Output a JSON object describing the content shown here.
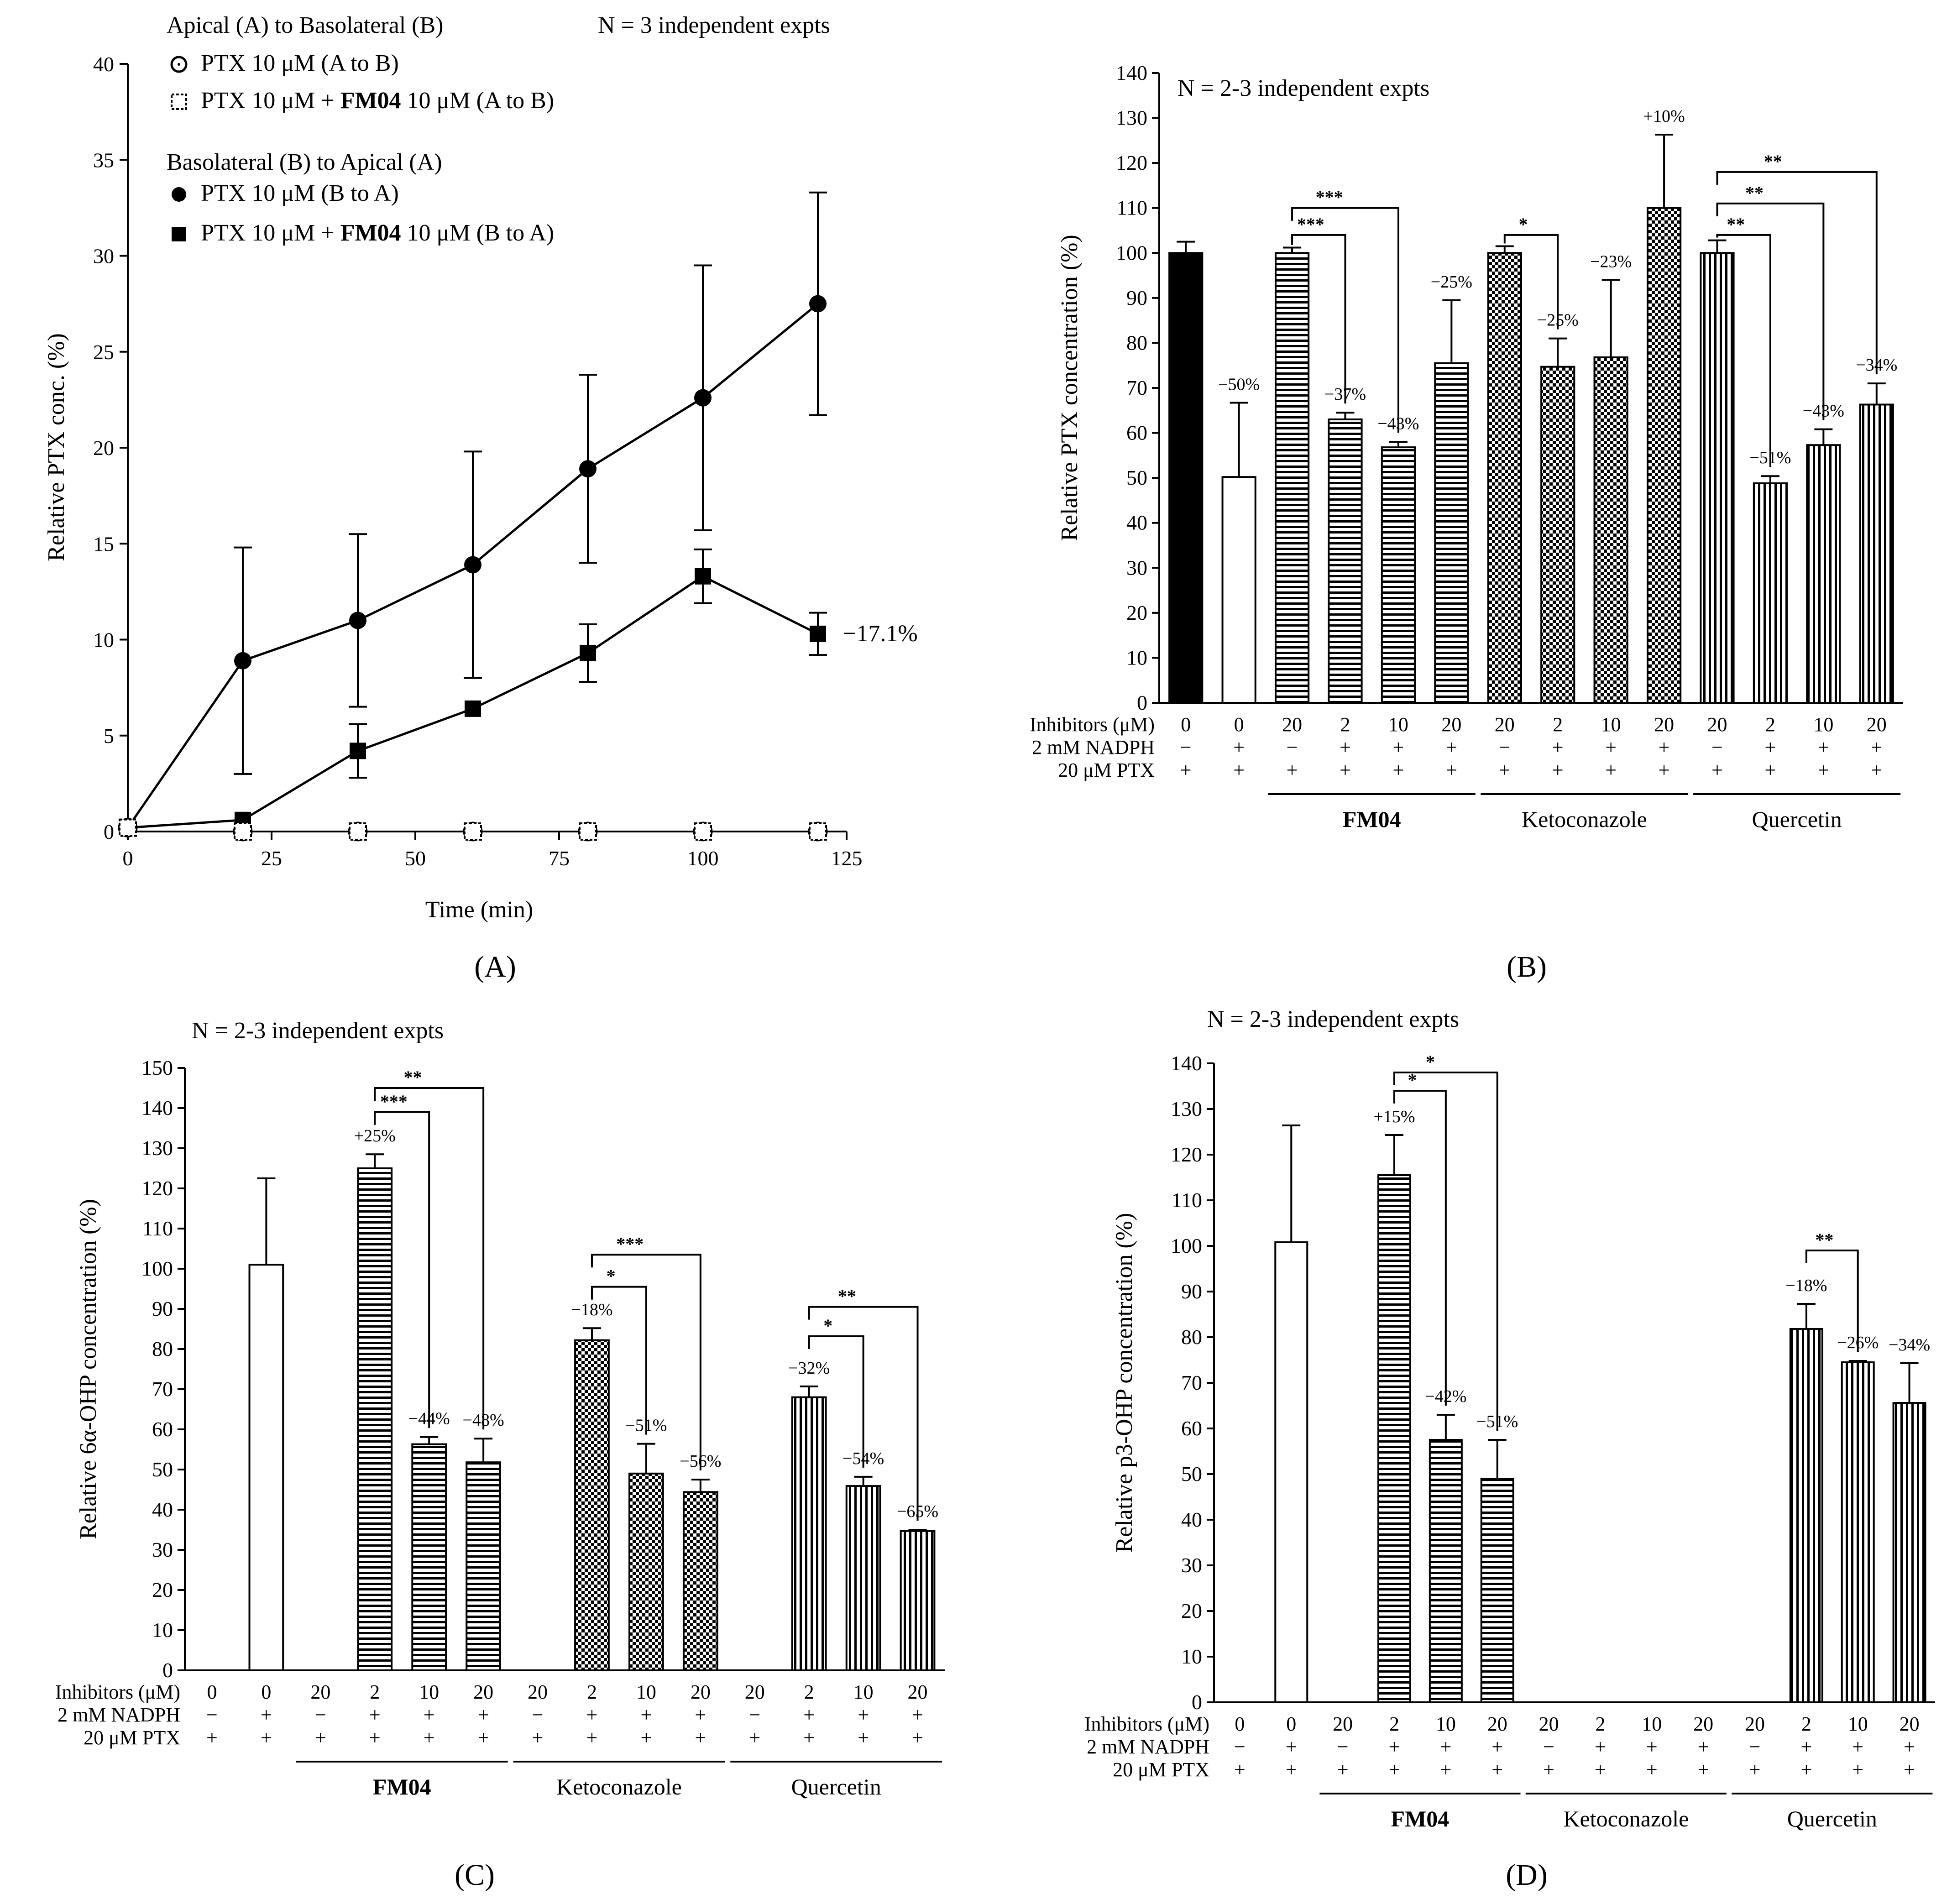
{
  "chart_data": [
    {
      "panel": "A",
      "type": "line",
      "panel_label": "(A)",
      "xlabel": "Time (min)",
      "ylabel": "Relative PTX conc.  (%)",
      "xlim": [
        0,
        125
      ],
      "ylim": [
        0,
        40
      ],
      "xticks": [
        "0",
        "25",
        "50",
        "75",
        "100",
        "125"
      ],
      "yticks": [
        "0",
        "5",
        "10",
        "15",
        "20",
        "25",
        "30",
        "35",
        "40"
      ],
      "note": "N = 3 independent expts",
      "legend_group1": "Apical (A) to Basolateral (B)",
      "legend_group2": "Basolateral (B) to Apical (A)",
      "legend_items": [
        {
          "prefix": "PTX 10 μM (A to B)",
          "bold": "",
          "suffix": ""
        },
        {
          "prefix": "PTX 10 μM + ",
          "bold": "FM04",
          "suffix": " 10 μM (A to B)"
        },
        {
          "prefix": "PTX 10 μM (B to A)",
          "bold": "",
          "suffix": ""
        },
        {
          "prefix": "PTX 10 μM + ",
          "bold": "FM04",
          "suffix": " 10 μM (B to A)"
        }
      ],
      "annotation": "−17.1%",
      "series": [
        {
          "name": "PTX 10 μM (A to B)",
          "marker": "open-circle",
          "x": [
            0,
            20,
            40,
            60,
            80,
            100,
            120
          ],
          "y": [
            0.2,
            0,
            0,
            0,
            0,
            0,
            0
          ],
          "err": [
            0,
            0,
            0,
            0,
            0,
            0,
            0
          ]
        },
        {
          "name": "PTX 10 μM + FM04 10 μM (A to B)",
          "marker": "open-square",
          "x": [
            0,
            20,
            40,
            60,
            80,
            100,
            120
          ],
          "y": [
            0.2,
            0,
            0,
            0,
            0,
            0,
            0
          ],
          "err": [
            0,
            0,
            0,
            0,
            0,
            0,
            0
          ]
        },
        {
          "name": "PTX 10 μM (B to A)",
          "marker": "filled-circle",
          "x": [
            0,
            20,
            40,
            60,
            80,
            100,
            120
          ],
          "y": [
            0.2,
            8.9,
            11.0,
            13.9,
            18.9,
            22.6,
            27.5
          ],
          "err": [
            0,
            5.9,
            4.5,
            5.9,
            4.9,
            6.9,
            5.8
          ]
        },
        {
          "name": "PTX 10 μM + FM04 10 μM (B to A)",
          "marker": "filled-square",
          "x": [
            0,
            20,
            40,
            60,
            80,
            100,
            120
          ],
          "y": [
            0.2,
            0.6,
            4.2,
            6.4,
            9.3,
            13.3,
            10.3
          ],
          "err": [
            0,
            0,
            1.4,
            0,
            1.5,
            1.4,
            1.1
          ]
        }
      ]
    },
    {
      "panel": "B",
      "type": "bar",
      "panel_label": "(B)",
      "ylabel": "Relative PTX concentration (%)",
      "ylim": [
        0,
        140
      ],
      "yticks": [
        "0",
        "10",
        "20",
        "30",
        "40",
        "50",
        "60",
        "70",
        "80",
        "90",
        "100",
        "110",
        "120",
        "130",
        "140"
      ],
      "note": "N = 2-3 independent expts",
      "row_labels": [
        "Inhibitors (μM)",
        "2 mM NADPH",
        "20 μM PTX"
      ],
      "groups": [
        {
          "name": "FM04",
          "bold": true,
          "from": 2,
          "to": 5
        },
        {
          "name": "Ketoconazole",
          "bold": false,
          "from": 6,
          "to": 9
        },
        {
          "name": "Quercetin",
          "bold": false,
          "from": 10,
          "to": 13
        }
      ],
      "bars": [
        {
          "value": 100,
          "err": 2.5,
          "fill": "black",
          "inhib": "0",
          "nadph": "−",
          "ptx": "+",
          "label": ""
        },
        {
          "value": 50.2,
          "err": 16.5,
          "fill": "white",
          "inhib": "0",
          "nadph": "+",
          "ptx": "+",
          "label": "−50%"
        },
        {
          "value": 100,
          "err": 1.2,
          "fill": "hstripe",
          "inhib": "20",
          "nadph": "−",
          "ptx": "+",
          "label": ""
        },
        {
          "value": 63,
          "err": 1.5,
          "fill": "hstripe",
          "inhib": "2",
          "nadph": "+",
          "ptx": "+",
          "label": "−37%"
        },
        {
          "value": 56.8,
          "err": 1.2,
          "fill": "hstripe",
          "inhib": "10",
          "nadph": "+",
          "ptx": "+",
          "label": "−43%"
        },
        {
          "value": 75.5,
          "err": 14,
          "fill": "hstripe",
          "inhib": "20",
          "nadph": "+",
          "ptx": "+",
          "label": "−25%"
        },
        {
          "value": 100,
          "err": 1.5,
          "fill": "check",
          "inhib": "20",
          "nadph": "−",
          "ptx": "+",
          "label": ""
        },
        {
          "value": 74.7,
          "err": 6.3,
          "fill": "check",
          "inhib": "2",
          "nadph": "+",
          "ptx": "+",
          "label": "−25%"
        },
        {
          "value": 76.8,
          "err": 17.2,
          "fill": "check",
          "inhib": "10",
          "nadph": "+",
          "ptx": "+",
          "label": "−23%"
        },
        {
          "value": 110,
          "err": 16.3,
          "fill": "check",
          "inhib": "20",
          "nadph": "+",
          "ptx": "+",
          "label": "+10%"
        },
        {
          "value": 100,
          "err": 2.8,
          "fill": "vstripe",
          "inhib": "20",
          "nadph": "−",
          "ptx": "+",
          "label": ""
        },
        {
          "value": 48.8,
          "err": 1.6,
          "fill": "vstripe",
          "inhib": "2",
          "nadph": "+",
          "ptx": "+",
          "label": "−51%"
        },
        {
          "value": 57.3,
          "err": 3.5,
          "fill": "vstripe",
          "inhib": "10",
          "nadph": "+",
          "ptx": "+",
          "label": "−43%"
        },
        {
          "value": 66.3,
          "err": 4.7,
          "fill": "vstripe",
          "inhib": "20",
          "nadph": "+",
          "ptx": "+",
          "label": "−34%"
        }
      ],
      "brackets": [
        {
          "from": 2,
          "to": 4,
          "level": 110,
          "stars": "***"
        },
        {
          "from": 2,
          "to": 3,
          "level": 104,
          "stars": "***"
        },
        {
          "from": 6,
          "to": 7,
          "level": 104,
          "stars": "*"
        },
        {
          "from": 10,
          "to": 13,
          "level": 118,
          "stars": "**"
        },
        {
          "from": 10,
          "to": 12,
          "level": 111,
          "stars": "**"
        },
        {
          "from": 10,
          "to": 11,
          "level": 104,
          "stars": "**"
        }
      ]
    },
    {
      "panel": "C",
      "type": "bar",
      "panel_label": "(C)",
      "ylabel": "Relative 6α-OHP concentration (%)",
      "ylim": [
        0,
        150
      ],
      "yticks": [
        "0",
        "10",
        "20",
        "30",
        "40",
        "50",
        "60",
        "70",
        "80",
        "90",
        "100",
        "110",
        "120",
        "130",
        "140",
        "150"
      ],
      "note": "N = 2-3 independent expts",
      "row_labels": [
        "Inhibitors (μM)",
        "2 mM NADPH",
        "20 μM PTX"
      ],
      "groups": [
        {
          "name": "FM04",
          "bold": true,
          "from": 2,
          "to": 5
        },
        {
          "name": "Ketoconazole",
          "bold": false,
          "from": 6,
          "to": 9
        },
        {
          "name": "Quercetin",
          "bold": false,
          "from": 10,
          "to": 13
        }
      ],
      "bars": [
        {
          "value": 0,
          "err": 0,
          "fill": "none",
          "inhib": "0",
          "nadph": "−",
          "ptx": "+",
          "label": ""
        },
        {
          "value": 101,
          "err": 21.5,
          "fill": "white",
          "inhib": "0",
          "nadph": "+",
          "ptx": "+",
          "label": ""
        },
        {
          "value": 0,
          "err": 0,
          "fill": "none",
          "inhib": "20",
          "nadph": "−",
          "ptx": "+",
          "label": ""
        },
        {
          "value": 125,
          "err": 3.5,
          "fill": "hstripe",
          "inhib": "2",
          "nadph": "+",
          "ptx": "+",
          "label": "+25%"
        },
        {
          "value": 56.3,
          "err": 1.8,
          "fill": "hstripe",
          "inhib": "10",
          "nadph": "+",
          "ptx": "+",
          "label": "−44%"
        },
        {
          "value": 51.8,
          "err": 5.9,
          "fill": "hstripe",
          "inhib": "20",
          "nadph": "+",
          "ptx": "+",
          "label": "−48%"
        },
        {
          "value": 0,
          "err": 0,
          "fill": "none",
          "inhib": "20",
          "nadph": "−",
          "ptx": "+",
          "label": ""
        },
        {
          "value": 82.2,
          "err": 3,
          "fill": "check",
          "inhib": "2",
          "nadph": "+",
          "ptx": "+",
          "label": "−18%"
        },
        {
          "value": 49,
          "err": 7.4,
          "fill": "check",
          "inhib": "10",
          "nadph": "+",
          "ptx": "+",
          "label": "−51%"
        },
        {
          "value": 44.4,
          "err": 3.1,
          "fill": "check",
          "inhib": "20",
          "nadph": "+",
          "ptx": "+",
          "label": "−56%"
        },
        {
          "value": 0,
          "err": 0,
          "fill": "none",
          "inhib": "20",
          "nadph": "−",
          "ptx": "+",
          "label": ""
        },
        {
          "value": 68,
          "err": 2.7,
          "fill": "vstripe",
          "inhib": "2",
          "nadph": "+",
          "ptx": "+",
          "label": "−32%"
        },
        {
          "value": 45.9,
          "err": 2.3,
          "fill": "vstripe",
          "inhib": "10",
          "nadph": "+",
          "ptx": "+",
          "label": "−54%"
        },
        {
          "value": 34.7,
          "err": 0.3,
          "fill": "vstripe",
          "inhib": "20",
          "nadph": "+",
          "ptx": "+",
          "label": "−65%"
        }
      ],
      "brackets": [
        {
          "from": 3,
          "to": 5,
          "level": 145,
          "stars": "**"
        },
        {
          "from": 3,
          "to": 4,
          "level": 139,
          "stars": "***"
        },
        {
          "from": 7,
          "to": 9,
          "level": 103.5,
          "stars": "***"
        },
        {
          "from": 7,
          "to": 8,
          "level": 95.5,
          "stars": "*"
        },
        {
          "from": 11,
          "to": 13,
          "level": 90.5,
          "stars": "**"
        },
        {
          "from": 11,
          "to": 12,
          "level": 83.2,
          "stars": "*"
        }
      ]
    },
    {
      "panel": "D",
      "type": "bar",
      "panel_label": "(D)",
      "ylabel": "Relative p3-OHP concentration  (%)",
      "ylim": [
        0,
        140
      ],
      "yticks": [
        "0",
        "10",
        "20",
        "30",
        "40",
        "50",
        "60",
        "70",
        "80",
        "90",
        "100",
        "110",
        "120",
        "130",
        "140"
      ],
      "note": "N = 2-3 independent expts",
      "row_labels": [
        "Inhibitors (μM)",
        "2 mM NADPH",
        "20 μM PTX"
      ],
      "groups": [
        {
          "name": "FM04",
          "bold": true,
          "from": 2,
          "to": 5
        },
        {
          "name": "Ketoconazole",
          "bold": false,
          "from": 6,
          "to": 9
        },
        {
          "name": "Quercetin",
          "bold": false,
          "from": 10,
          "to": 13
        }
      ],
      "bars": [
        {
          "value": 0,
          "err": 0,
          "fill": "none",
          "inhib": "0",
          "nadph": "−",
          "ptx": "+",
          "label": ""
        },
        {
          "value": 100.8,
          "err": 25.6,
          "fill": "white",
          "inhib": "0",
          "nadph": "+",
          "ptx": "+",
          "label": ""
        },
        {
          "value": 0,
          "err": 0,
          "fill": "none",
          "inhib": "20",
          "nadph": "−",
          "ptx": "+",
          "label": ""
        },
        {
          "value": 115.5,
          "err": 8.8,
          "fill": "hstripe",
          "inhib": "2",
          "nadph": "+",
          "ptx": "+",
          "label": "+15%"
        },
        {
          "value": 57.5,
          "err": 5.5,
          "fill": "hstripe",
          "inhib": "10",
          "nadph": "+",
          "ptx": "+",
          "label": "−42%"
        },
        {
          "value": 49,
          "err": 8.5,
          "fill": "hstripe",
          "inhib": "20",
          "nadph": "+",
          "ptx": "+",
          "label": "−51%"
        },
        {
          "value": 0,
          "err": 0,
          "fill": "none",
          "inhib": "20",
          "nadph": "−",
          "ptx": "+",
          "label": ""
        },
        {
          "value": 0,
          "err": 0,
          "fill": "none",
          "inhib": "2",
          "nadph": "+",
          "ptx": "+",
          "label": ""
        },
        {
          "value": 0,
          "err": 0,
          "fill": "none",
          "inhib": "10",
          "nadph": "+",
          "ptx": "+",
          "label": ""
        },
        {
          "value": 0,
          "err": 0,
          "fill": "none",
          "inhib": "20",
          "nadph": "+",
          "ptx": "+",
          "label": ""
        },
        {
          "value": 0,
          "err": 0,
          "fill": "none",
          "inhib": "20",
          "nadph": "−",
          "ptx": "+",
          "label": ""
        },
        {
          "value": 81.8,
          "err": 5.5,
          "fill": "vstripe",
          "inhib": "2",
          "nadph": "+",
          "ptx": "+",
          "label": "−18%"
        },
        {
          "value": 74.5,
          "err": 0.3,
          "fill": "vstripe",
          "inhib": "10",
          "nadph": "+",
          "ptx": "+",
          "label": "−26%"
        },
        {
          "value": 65.6,
          "err": 8.7,
          "fill": "vstripe",
          "inhib": "20",
          "nadph": "+",
          "ptx": "+",
          "label": "−34%"
        }
      ],
      "brackets": [
        {
          "from": 3,
          "to": 5,
          "level": 138,
          "stars": "*"
        },
        {
          "from": 3,
          "to": 4,
          "level": 134,
          "stars": "*"
        },
        {
          "from": 11,
          "to": 12,
          "level": 99,
          "stars": "**"
        }
      ]
    }
  ]
}
